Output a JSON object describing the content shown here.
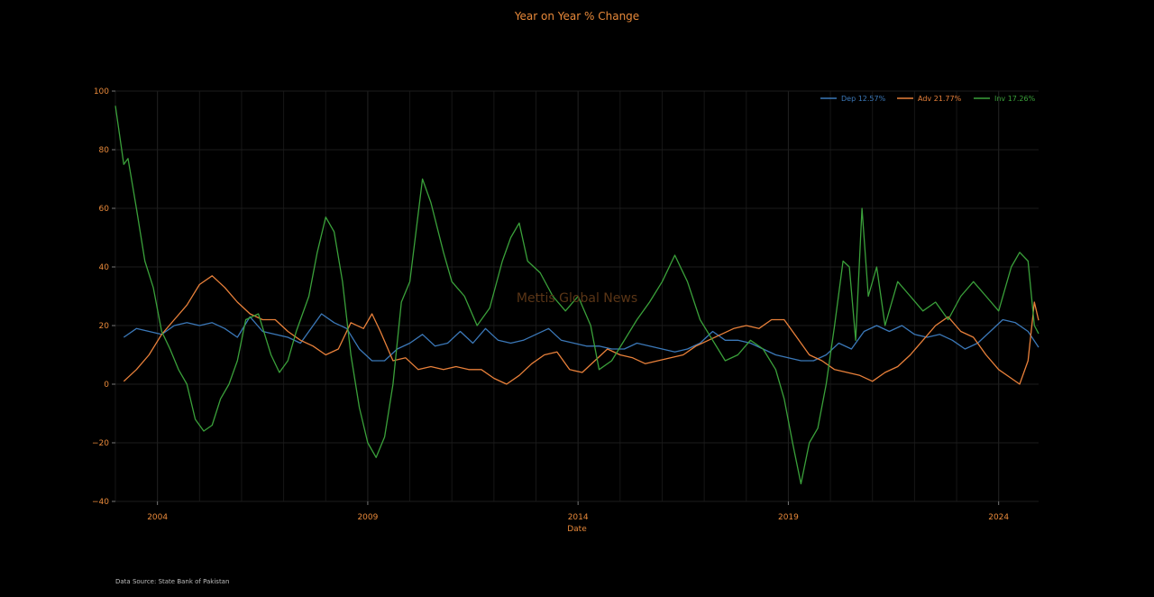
{
  "chart_data": {
    "type": "line",
    "title": "Year on Year % Change",
    "xlabel": "Date",
    "ylabel": "",
    "xlim": [
      2003.0,
      2024.95
    ],
    "ylim": [
      -40,
      100
    ],
    "x_ticks": [
      "2004",
      "2009",
      "2014",
      "2019",
      "2024"
    ],
    "y_ticks": [
      "100",
      "80",
      "60",
      "40",
      "20",
      "0",
      "−20",
      "−40"
    ],
    "grid": true,
    "legend_position": "top-right",
    "watermark": "Mettis Global News",
    "source": "Data Source: State Bank of Pakistan",
    "colors": {
      "background": "#000000",
      "text": "#e8893a",
      "dep": "#3b78b8",
      "adv": "#e8803a",
      "inv": "#3aa03a"
    },
    "series": [
      {
        "name": "Dep 12.57%",
        "key": "dep",
        "points": [
          [
            2003.2,
            16
          ],
          [
            2003.5,
            19
          ],
          [
            2003.8,
            18
          ],
          [
            2004.1,
            17
          ],
          [
            2004.4,
            20
          ],
          [
            2004.7,
            21
          ],
          [
            2005.0,
            20
          ],
          [
            2005.3,
            21
          ],
          [
            2005.6,
            19
          ],
          [
            2005.9,
            16
          ],
          [
            2006.2,
            23
          ],
          [
            2006.5,
            18
          ],
          [
            2006.8,
            17
          ],
          [
            2007.1,
            16
          ],
          [
            2007.4,
            14
          ],
          [
            2007.7,
            20
          ],
          [
            2007.9,
            24
          ],
          [
            2008.2,
            21
          ],
          [
            2008.5,
            19
          ],
          [
            2008.8,
            12
          ],
          [
            2009.1,
            8
          ],
          [
            2009.4,
            8
          ],
          [
            2009.7,
            12
          ],
          [
            2010.0,
            14
          ],
          [
            2010.3,
            17
          ],
          [
            2010.6,
            13
          ],
          [
            2010.9,
            14
          ],
          [
            2011.2,
            18
          ],
          [
            2011.5,
            14
          ],
          [
            2011.8,
            19
          ],
          [
            2012.1,
            15
          ],
          [
            2012.4,
            14
          ],
          [
            2012.7,
            15
          ],
          [
            2013.0,
            17
          ],
          [
            2013.3,
            19
          ],
          [
            2013.6,
            15
          ],
          [
            2013.9,
            14
          ],
          [
            2014.2,
            13
          ],
          [
            2014.5,
            13
          ],
          [
            2014.8,
            12
          ],
          [
            2015.1,
            12
          ],
          [
            2015.4,
            14
          ],
          [
            2015.7,
            13
          ],
          [
            2016.0,
            12
          ],
          [
            2016.3,
            11
          ],
          [
            2016.6,
            12
          ],
          [
            2016.9,
            14
          ],
          [
            2017.2,
            18
          ],
          [
            2017.5,
            15
          ],
          [
            2017.8,
            15
          ],
          [
            2018.1,
            14
          ],
          [
            2018.4,
            12
          ],
          [
            2018.7,
            10
          ],
          [
            2019.0,
            9
          ],
          [
            2019.3,
            8
          ],
          [
            2019.6,
            8
          ],
          [
            2019.9,
            10
          ],
          [
            2020.2,
            14
          ],
          [
            2020.5,
            12
          ],
          [
            2020.8,
            18
          ],
          [
            2021.1,
            20
          ],
          [
            2021.4,
            18
          ],
          [
            2021.7,
            20
          ],
          [
            2022.0,
            17
          ],
          [
            2022.3,
            16
          ],
          [
            2022.6,
            17
          ],
          [
            2022.9,
            15
          ],
          [
            2023.2,
            12
          ],
          [
            2023.5,
            14
          ],
          [
            2023.8,
            18
          ],
          [
            2024.1,
            22
          ],
          [
            2024.4,
            21
          ],
          [
            2024.7,
            18
          ],
          [
            2024.95,
            12.57
          ]
        ]
      },
      {
        "name": "Adv 21.77%",
        "key": "adv",
        "points": [
          [
            2003.2,
            1
          ],
          [
            2003.5,
            5
          ],
          [
            2003.8,
            10
          ],
          [
            2004.1,
            17
          ],
          [
            2004.4,
            22
          ],
          [
            2004.7,
            27
          ],
          [
            2005.0,
            34
          ],
          [
            2005.3,
            37
          ],
          [
            2005.6,
            33
          ],
          [
            2005.9,
            28
          ],
          [
            2006.2,
            24
          ],
          [
            2006.5,
            22
          ],
          [
            2006.8,
            22
          ],
          [
            2007.1,
            18
          ],
          [
            2007.4,
            15
          ],
          [
            2007.7,
            13
          ],
          [
            2008.0,
            10
          ],
          [
            2008.3,
            12
          ],
          [
            2008.6,
            21
          ],
          [
            2008.9,
            19
          ],
          [
            2009.1,
            24
          ],
          [
            2009.3,
            18
          ],
          [
            2009.6,
            8
          ],
          [
            2009.9,
            9
          ],
          [
            2010.2,
            5
          ],
          [
            2010.5,
            6
          ],
          [
            2010.8,
            5
          ],
          [
            2011.1,
            6
          ],
          [
            2011.4,
            5
          ],
          [
            2011.7,
            5
          ],
          [
            2012.0,
            2
          ],
          [
            2012.3,
            0
          ],
          [
            2012.6,
            3
          ],
          [
            2012.9,
            7
          ],
          [
            2013.2,
            10
          ],
          [
            2013.5,
            11
          ],
          [
            2013.8,
            5
          ],
          [
            2014.1,
            4
          ],
          [
            2014.4,
            8
          ],
          [
            2014.7,
            12
          ],
          [
            2015.0,
            10
          ],
          [
            2015.3,
            9
          ],
          [
            2015.6,
            7
          ],
          [
            2015.9,
            8
          ],
          [
            2016.2,
            9
          ],
          [
            2016.5,
            10
          ],
          [
            2016.8,
            13
          ],
          [
            2017.1,
            15
          ],
          [
            2017.4,
            17
          ],
          [
            2017.7,
            19
          ],
          [
            2018.0,
            20
          ],
          [
            2018.3,
            19
          ],
          [
            2018.6,
            22
          ],
          [
            2018.9,
            22
          ],
          [
            2019.2,
            16
          ],
          [
            2019.5,
            10
          ],
          [
            2019.8,
            8
          ],
          [
            2020.1,
            5
          ],
          [
            2020.4,
            4
          ],
          [
            2020.7,
            3
          ],
          [
            2021.0,
            1
          ],
          [
            2021.3,
            4
          ],
          [
            2021.6,
            6
          ],
          [
            2021.9,
            10
          ],
          [
            2022.2,
            15
          ],
          [
            2022.5,
            20
          ],
          [
            2022.8,
            23
          ],
          [
            2023.1,
            18
          ],
          [
            2023.4,
            16
          ],
          [
            2023.7,
            10
          ],
          [
            2024.0,
            5
          ],
          [
            2024.3,
            2
          ],
          [
            2024.5,
            0
          ],
          [
            2024.7,
            8
          ],
          [
            2024.85,
            28
          ],
          [
            2024.95,
            21.77
          ]
        ]
      },
      {
        "name": "Inv 17.26%",
        "key": "inv",
        "points": [
          [
            2003.0,
            95
          ],
          [
            2003.2,
            75
          ],
          [
            2003.3,
            77
          ],
          [
            2003.5,
            60
          ],
          [
            2003.7,
            42
          ],
          [
            2003.9,
            33
          ],
          [
            2004.1,
            18
          ],
          [
            2004.3,
            12
          ],
          [
            2004.5,
            5
          ],
          [
            2004.7,
            0
          ],
          [
            2004.9,
            -12
          ],
          [
            2005.1,
            -16
          ],
          [
            2005.3,
            -14
          ],
          [
            2005.5,
            -5
          ],
          [
            2005.7,
            0
          ],
          [
            2005.9,
            8
          ],
          [
            2006.1,
            22
          ],
          [
            2006.4,
            24
          ],
          [
            2006.7,
            10
          ],
          [
            2006.9,
            4
          ],
          [
            2007.1,
            8
          ],
          [
            2007.3,
            18
          ],
          [
            2007.6,
            30
          ],
          [
            2007.8,
            45
          ],
          [
            2008.0,
            57
          ],
          [
            2008.2,
            52
          ],
          [
            2008.4,
            35
          ],
          [
            2008.6,
            10
          ],
          [
            2008.8,
            -8
          ],
          [
            2009.0,
            -20
          ],
          [
            2009.2,
            -25
          ],
          [
            2009.4,
            -18
          ],
          [
            2009.6,
            0
          ],
          [
            2009.8,
            28
          ],
          [
            2010.0,
            35
          ],
          [
            2010.3,
            70
          ],
          [
            2010.5,
            62
          ],
          [
            2010.8,
            45
          ],
          [
            2011.0,
            35
          ],
          [
            2011.3,
            30
          ],
          [
            2011.6,
            20
          ],
          [
            2011.9,
            26
          ],
          [
            2012.2,
            42
          ],
          [
            2012.4,
            50
          ],
          [
            2012.6,
            55
          ],
          [
            2012.8,
            42
          ],
          [
            2013.1,
            38
          ],
          [
            2013.4,
            30
          ],
          [
            2013.7,
            25
          ],
          [
            2014.0,
            30
          ],
          [
            2014.3,
            20
          ],
          [
            2014.5,
            5
          ],
          [
            2014.8,
            8
          ],
          [
            2015.1,
            15
          ],
          [
            2015.4,
            22
          ],
          [
            2015.7,
            28
          ],
          [
            2016.0,
            35
          ],
          [
            2016.3,
            44
          ],
          [
            2016.6,
            35
          ],
          [
            2016.9,
            22
          ],
          [
            2017.2,
            15
          ],
          [
            2017.5,
            8
          ],
          [
            2017.8,
            10
          ],
          [
            2018.1,
            15
          ],
          [
            2018.4,
            12
          ],
          [
            2018.7,
            5
          ],
          [
            2018.9,
            -5
          ],
          [
            2019.1,
            -20
          ],
          [
            2019.3,
            -34
          ],
          [
            2019.5,
            -20
          ],
          [
            2019.7,
            -15
          ],
          [
            2019.9,
            0
          ],
          [
            2020.1,
            20
          ],
          [
            2020.3,
            42
          ],
          [
            2020.45,
            40
          ],
          [
            2020.6,
            15
          ],
          [
            2020.75,
            60
          ],
          [
            2020.9,
            30
          ],
          [
            2021.1,
            40
          ],
          [
            2021.3,
            20
          ],
          [
            2021.6,
            35
          ],
          [
            2021.9,
            30
          ],
          [
            2022.2,
            25
          ],
          [
            2022.5,
            28
          ],
          [
            2022.8,
            22
          ],
          [
            2023.1,
            30
          ],
          [
            2023.4,
            35
          ],
          [
            2023.7,
            30
          ],
          [
            2024.0,
            25
          ],
          [
            2024.3,
            40
          ],
          [
            2024.5,
            45
          ],
          [
            2024.7,
            42
          ],
          [
            2024.85,
            20
          ],
          [
            2024.95,
            17.26
          ]
        ]
      }
    ]
  }
}
